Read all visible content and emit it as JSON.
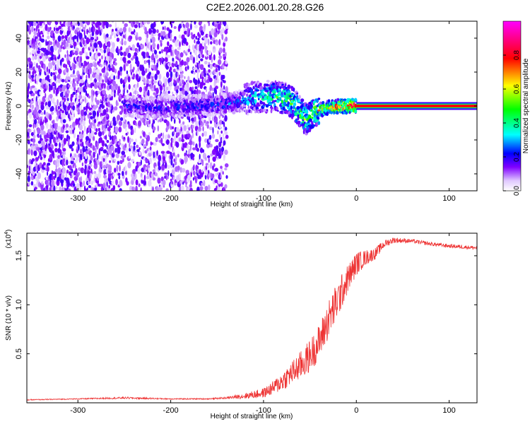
{
  "figure": {
    "title": "C2E2.2026.001.20.28.G26"
  },
  "chart_data": [
    {
      "type": "heatmap",
      "name": "spectrogram",
      "xlabel": "Height of straight line (km)",
      "ylabel": "Frequency (Hz)",
      "xlim": [
        -355,
        130
      ],
      "ylim": [
        -50,
        50
      ],
      "xticks": [
        -300,
        -200,
        -100,
        0,
        100
      ],
      "xtick_labels": [
        "-300",
        "-200",
        "-100",
        "0",
        "100"
      ],
      "yticks": [
        -40,
        -20,
        0,
        20,
        40
      ],
      "ytick_labels": [
        "-40",
        "-20",
        "0",
        "20",
        "40"
      ],
      "grid": false,
      "colorbar": {
        "label": "Normalized spectral amplitude",
        "range": [
          0,
          1
        ],
        "ticks": [
          0,
          0.2,
          0.4,
          0.6,
          0.8
        ],
        "tick_labels": [
          "0.0",
          "0.2",
          "0.4",
          "0.6",
          "0.8"
        ],
        "colormap": [
          "#ffffff",
          "#7f00ff",
          "#0000ff",
          "#00ffff",
          "#00ff00",
          "#ffff00",
          "#ff0000",
          "#ff00ff"
        ]
      },
      "features": {
        "noise_region_x": [
          -355,
          -140
        ],
        "noise_amplitude": 0.12,
        "signal_track": [
          {
            "x": -250,
            "f": 0.0,
            "amp": 0.18
          },
          {
            "x": -220,
            "f": -1.0,
            "amp": 0.2
          },
          {
            "x": -180,
            "f": 0.0,
            "amp": 0.2
          },
          {
            "x": -140,
            "f": 1.0,
            "amp": 0.22
          },
          {
            "x": -110,
            "f": 5.0,
            "amp": 0.3
          },
          {
            "x": -90,
            "f": 6.0,
            "amp": 0.38
          },
          {
            "x": -70,
            "f": 3.0,
            "amp": 0.45
          },
          {
            "x": -55,
            "f": -8.0,
            "amp": 0.45
          },
          {
            "x": -45,
            "f": -3.0,
            "amp": 0.5
          },
          {
            "x": -30,
            "f": -1.0,
            "amp": 0.6
          },
          {
            "x": -15,
            "f": 0.0,
            "amp": 0.75
          },
          {
            "x": 0,
            "f": 0.0,
            "amp": 0.85
          },
          {
            "x": 130,
            "f": 0.0,
            "amp": 0.9
          }
        ],
        "carrier_band_hz": [
          -0.8,
          0.8
        ],
        "carrier_start_x": 0
      }
    },
    {
      "type": "line",
      "name": "snr",
      "xlabel": "Height of straight line (km)",
      "ylabel": "SNR (10 * v/v)",
      "scale_label": "(x10",
      "scale_exponent": "4",
      "xlim": [
        -355,
        130
      ],
      "ylim": [
        0,
        1.73
      ],
      "xticks": [
        -300,
        -200,
        -100,
        0,
        100
      ],
      "xtick_labels": [
        "-300",
        "-200",
        "-100",
        "0",
        "100"
      ],
      "yticks": [
        0.5,
        1.0,
        1.5
      ],
      "ytick_labels": [
        "0.5",
        "1.0",
        "1.5"
      ],
      "grid": false,
      "series": [
        {
          "name": "SNR",
          "color": "#ee3333",
          "x": [
            -355,
            -300,
            -250,
            -200,
            -160,
            -140,
            -120,
            -100,
            -90,
            -80,
            -70,
            -60,
            -50,
            -40,
            -30,
            -20,
            -10,
            0,
            10,
            20,
            30,
            40,
            60,
            80,
            100,
            130
          ],
          "y": [
            0.03,
            0.04,
            0.05,
            0.04,
            0.04,
            0.05,
            0.07,
            0.1,
            0.15,
            0.22,
            0.3,
            0.38,
            0.48,
            0.62,
            0.85,
            1.05,
            1.25,
            1.42,
            1.48,
            1.52,
            1.62,
            1.66,
            1.65,
            1.62,
            1.6,
            1.58
          ],
          "noise": [
            0.005,
            0.005,
            0.01,
            0.006,
            0.006,
            0.01,
            0.03,
            0.05,
            0.07,
            0.1,
            0.12,
            0.15,
            0.17,
            0.18,
            0.2,
            0.2,
            0.15,
            0.12,
            0.08,
            0.06,
            0.04,
            0.03,
            0.02,
            0.02,
            0.02,
            0.02
          ]
        }
      ]
    }
  ]
}
